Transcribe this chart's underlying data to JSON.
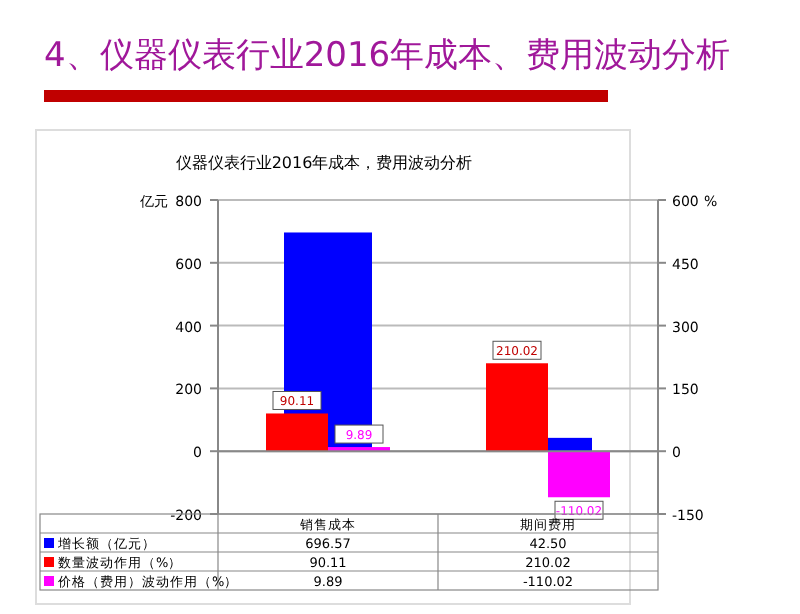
{
  "chart_data": {
    "type": "bar",
    "title": "4、仪器仪表行业2016年成本、费用波动分析",
    "subtitle": "仪器仪表行业2016年成本，费用波动分析",
    "ylabel": "亿元",
    "y2label": "%",
    "categories": [
      "销售成本",
      "期间费用"
    ],
    "series": [
      {
        "name": "增长额（亿元）",
        "color": "#0000ff",
        "values": [
          696.57,
          42.5
        ],
        "value_labels": [
          "696.57",
          "42.50"
        ]
      },
      {
        "name": "数量波动作用（%）",
        "color": "#ff0000",
        "values": [
          90.11,
          210.02
        ],
        "axis": "y2",
        "value_labels": [
          "90.11",
          "210.02"
        ]
      },
      {
        "name": "价格（费用）波动作用（%）",
        "color": "#ff00ff",
        "values": [
          9.89,
          -110.02
        ],
        "axis": "y2",
        "value_labels": [
          "9.89",
          "-110.02"
        ]
      }
    ],
    "ylim": [
      -200,
      800
    ],
    "yticks": [
      -200,
      0,
      200,
      400,
      600,
      800
    ],
    "y2lim": [
      -150,
      600
    ],
    "y2ticks": [
      -150,
      0,
      150,
      300,
      450,
      600
    ],
    "grid": "y",
    "legend": "bottom"
  }
}
